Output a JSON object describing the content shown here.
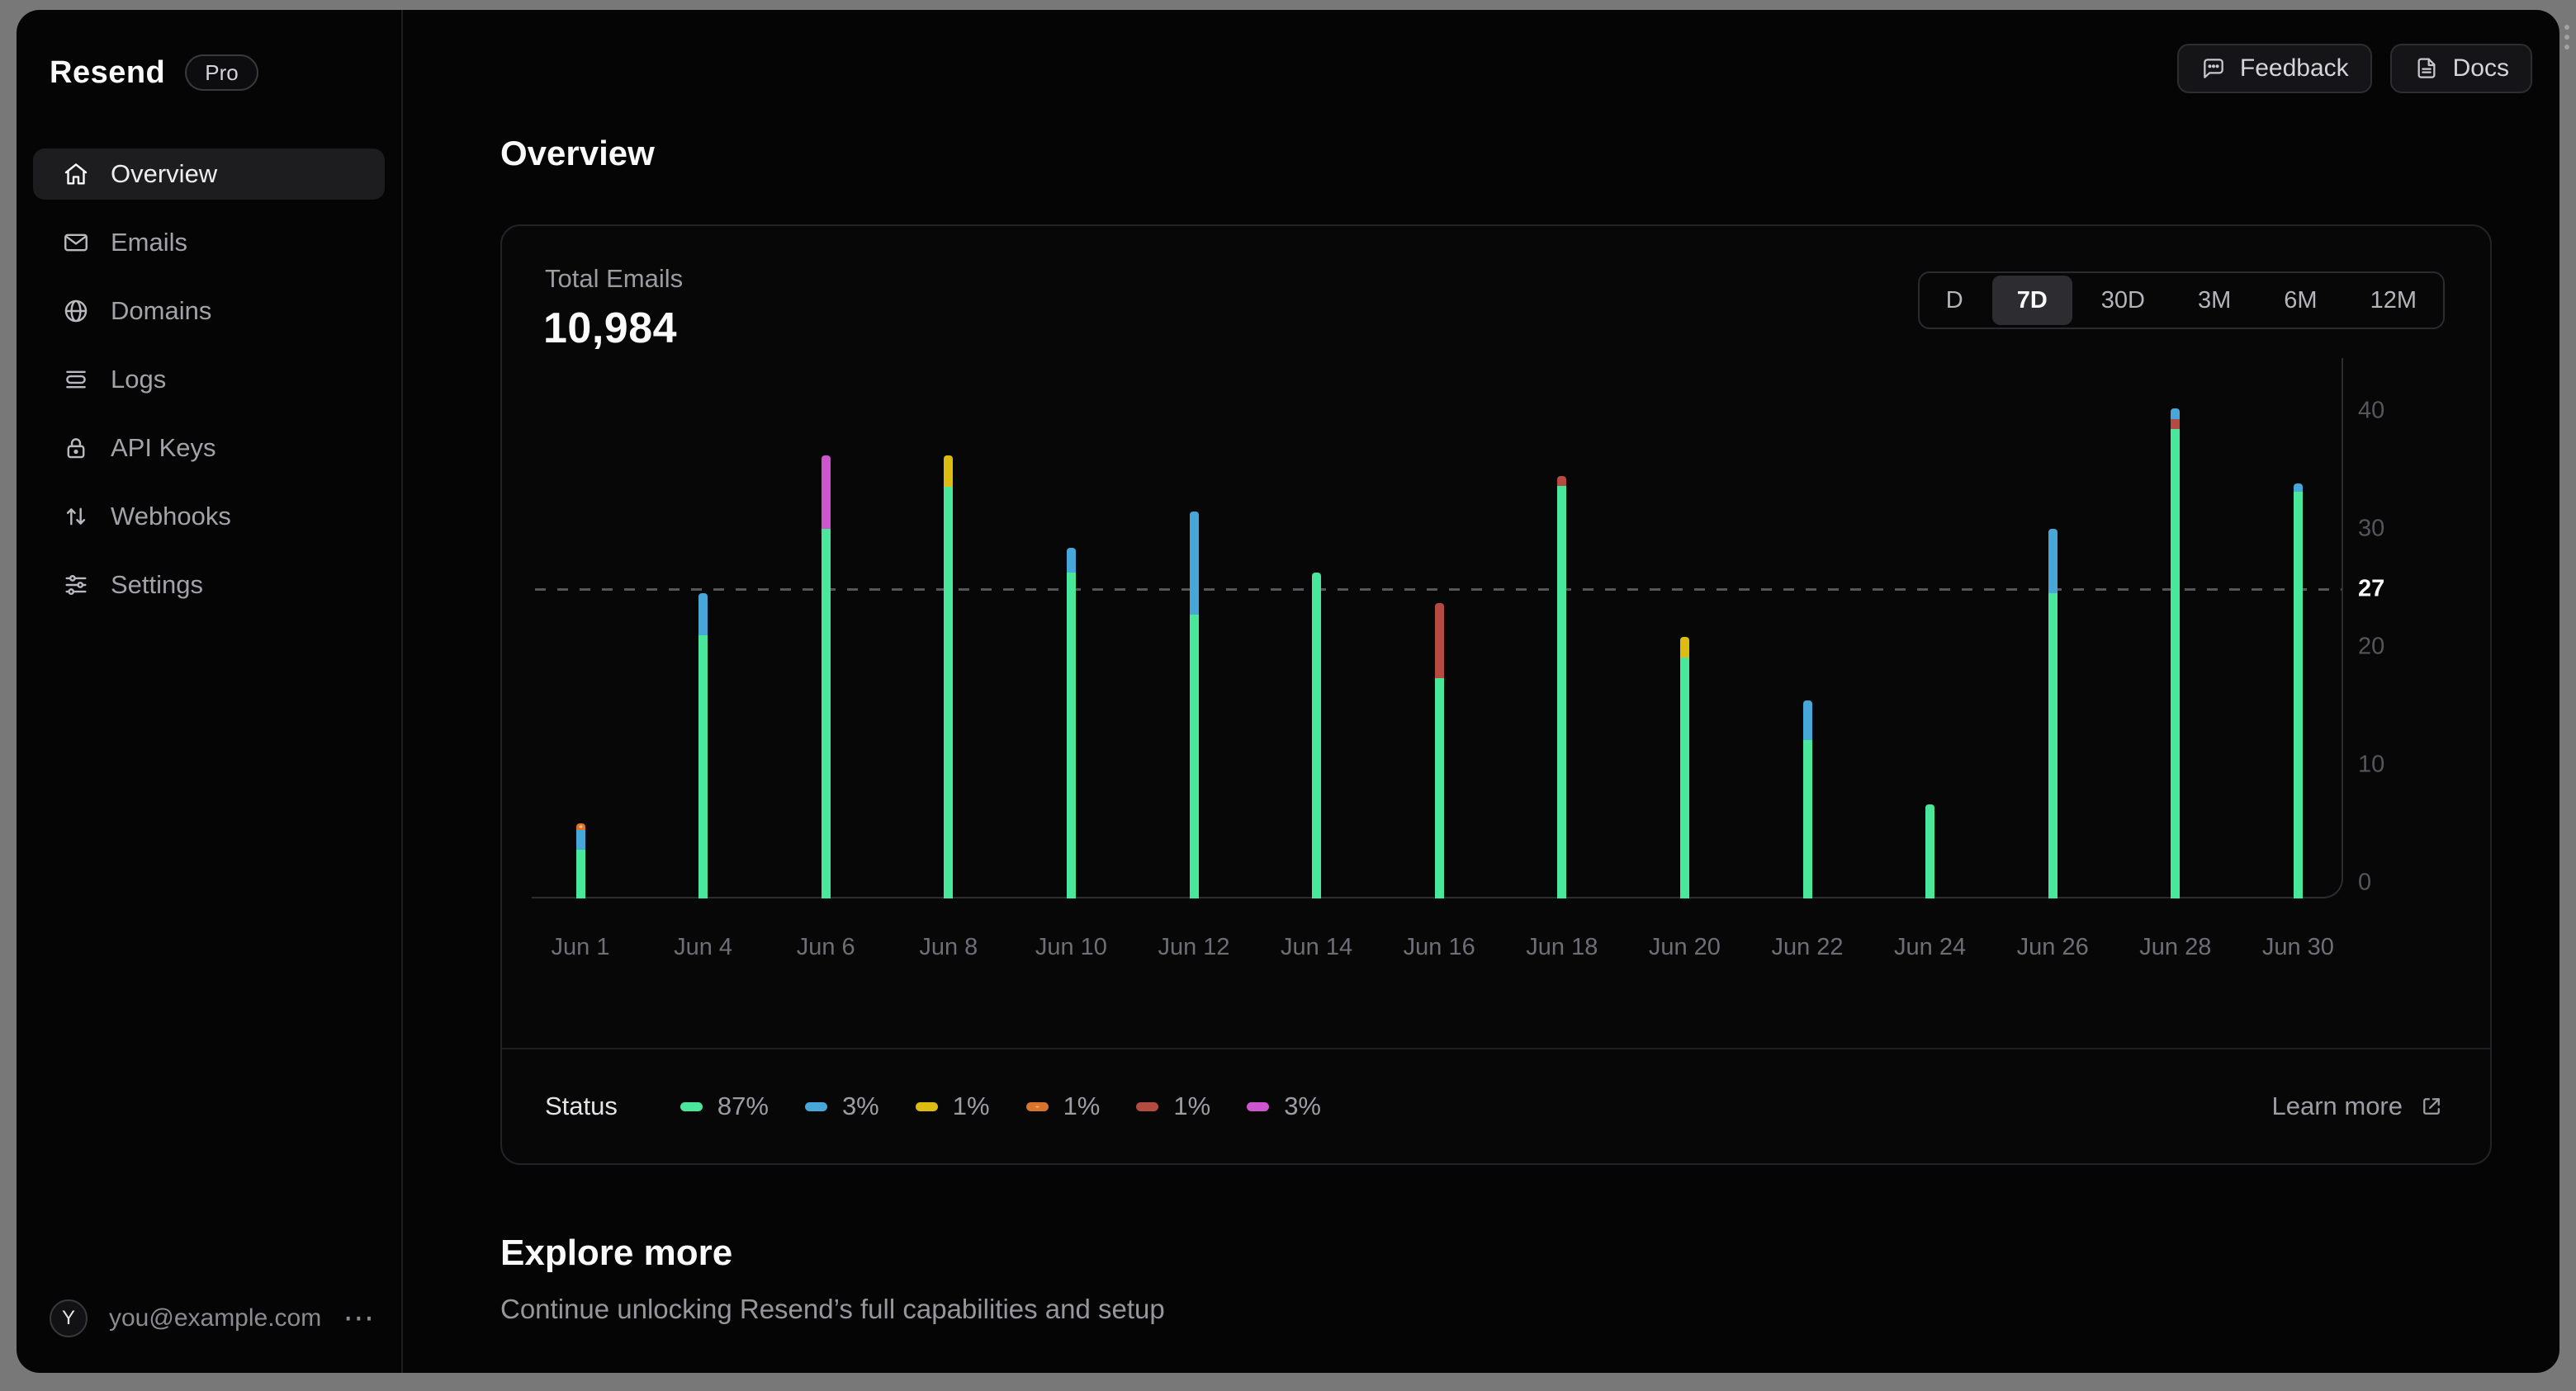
{
  "app": {
    "name": "Resend",
    "plan": "Pro"
  },
  "sidebar": {
    "items": [
      {
        "label": "Overview",
        "icon": "home-icon",
        "active": true
      },
      {
        "label": "Emails",
        "icon": "mail-icon",
        "active": false
      },
      {
        "label": "Domains",
        "icon": "globe-icon",
        "active": false
      },
      {
        "label": "Logs",
        "icon": "logs-icon",
        "active": false
      },
      {
        "label": "API Keys",
        "icon": "lock-icon",
        "active": false
      },
      {
        "label": "Webhooks",
        "icon": "webhooks-icon",
        "active": false
      },
      {
        "label": "Settings",
        "icon": "settings-icon",
        "active": false
      }
    ],
    "user": {
      "avatar_initial": "Y",
      "email": "you@example.com"
    }
  },
  "topbar": {
    "feedback_label": "Feedback",
    "docs_label": "Docs"
  },
  "page": {
    "title": "Overview",
    "section_title": "Explore more",
    "section_subtitle": "Continue unlocking Resend’s full capabilities and setup"
  },
  "metric_card": {
    "label": "Total Emails",
    "value": "10,984",
    "ranges": [
      "D",
      "7D",
      "30D",
      "3M",
      "6M",
      "12M"
    ],
    "active_range": "7D",
    "legend_title": "Status",
    "learn_more_label": "Learn more",
    "legend": [
      {
        "color_name": "green",
        "hex": "#49e79b",
        "percent": "87%",
        "pattern": "solid"
      },
      {
        "color_name": "blue",
        "hex": "#46a7d8",
        "percent": "3%",
        "pattern": "solid"
      },
      {
        "color_name": "yellow",
        "hex": "#ddbc12",
        "percent": "1%",
        "pattern": "solid"
      },
      {
        "color_name": "orange",
        "hex": "#d9742e",
        "percent": "1%",
        "pattern": "dotted"
      },
      {
        "color_name": "red",
        "hex": "#b34b41",
        "percent": "1%",
        "pattern": "solid"
      },
      {
        "color_name": "magenta",
        "hex": "#cd56ce",
        "percent": "3%",
        "pattern": "solid"
      }
    ]
  },
  "chart_data": {
    "type": "bar",
    "stacked": true,
    "title": "Total Emails",
    "total_value": 10984,
    "ylim": [
      0,
      40
    ],
    "yticks": [
      0,
      10,
      20,
      30,
      40
    ],
    "reference_line": {
      "value": 27,
      "label": "27",
      "style": "dashed"
    },
    "grid": "off",
    "legend_position": "bottom",
    "colors": {
      "green": "#49e79b",
      "blue": "#46a7d8",
      "yellow": "#ddbc12",
      "orange": "#d9742e",
      "red": "#b34b41",
      "magenta": "#cd56ce"
    },
    "categories": [
      "Jun 1",
      "Jun 4",
      "Jun 6",
      "Jun 8",
      "Jun 10",
      "Jun 12",
      "Jun 14",
      "Jun 16",
      "Jun 18",
      "Jun 20",
      "Jun 22",
      "Jun 24",
      "Jun 26",
      "Jun 28",
      "Jun 30"
    ],
    "bars": [
      {
        "label": "Jun 1",
        "segments": [
          {
            "color": "green",
            "value": 4.0
          },
          {
            "color": "blue",
            "value": 1.6
          },
          {
            "color": "orange",
            "value": 0.6
          }
        ]
      },
      {
        "label": "Jun 4",
        "segments": [
          {
            "color": "green",
            "value": 21.6
          },
          {
            "color": "blue",
            "value": 3.5
          }
        ]
      },
      {
        "label": "Jun 6",
        "segments": [
          {
            "color": "green",
            "value": 30.4
          },
          {
            "color": "magenta",
            "value": 6.0
          }
        ]
      },
      {
        "label": "Jun 8",
        "segments": [
          {
            "color": "green",
            "value": 33.8
          },
          {
            "color": "yellow",
            "value": 2.6
          }
        ]
      },
      {
        "label": "Jun 10",
        "segments": [
          {
            "color": "green",
            "value": 26.8
          },
          {
            "color": "blue",
            "value": 2.0
          }
        ]
      },
      {
        "label": "Jun 12",
        "segments": [
          {
            "color": "green",
            "value": 23.3
          },
          {
            "color": "blue",
            "value": 8.5
          }
        ]
      },
      {
        "label": "Jun 14",
        "segments": [
          {
            "color": "green",
            "value": 26.8
          }
        ]
      },
      {
        "label": "Jun 16",
        "segments": [
          {
            "color": "green",
            "value": 18.1
          },
          {
            "color": "red",
            "value": 6.2
          }
        ]
      },
      {
        "label": "Jun 18",
        "segments": [
          {
            "color": "green",
            "value": 33.9
          },
          {
            "color": "red",
            "value": 0.8
          }
        ]
      },
      {
        "label": "Jun 20",
        "segments": [
          {
            "color": "green",
            "value": 19.8
          },
          {
            "color": "yellow",
            "value": 1.7
          }
        ]
      },
      {
        "label": "Jun 22",
        "segments": [
          {
            "color": "green",
            "value": 13.0
          },
          {
            "color": "blue",
            "value": 3.3
          }
        ]
      },
      {
        "label": "Jun 24",
        "segments": [
          {
            "color": "green",
            "value": 7.7
          }
        ]
      },
      {
        "label": "Jun 26",
        "segments": [
          {
            "color": "green",
            "value": 25.1
          },
          {
            "color": "blue",
            "value": 5.3
          }
        ]
      },
      {
        "label": "Jun 28",
        "segments": [
          {
            "color": "green",
            "value": 38.6
          },
          {
            "color": "red",
            "value": 0.8
          },
          {
            "color": "blue",
            "value": 0.9
          }
        ]
      },
      {
        "label": "Jun 30",
        "segments": [
          {
            "color": "green",
            "value": 33.4
          },
          {
            "color": "blue",
            "value": 0.7
          }
        ]
      }
    ]
  }
}
